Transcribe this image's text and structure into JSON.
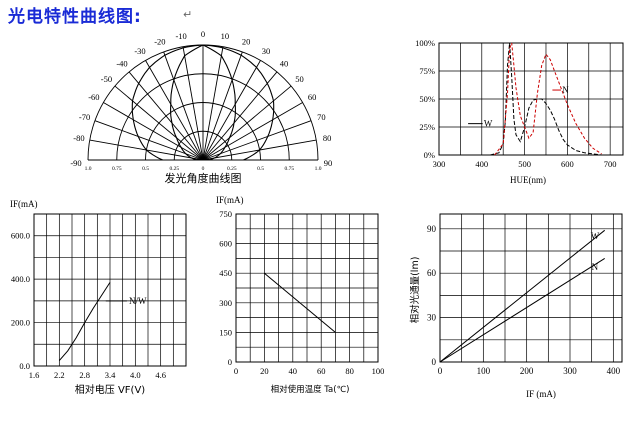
{
  "page": {
    "title": "光电特性曲线图:",
    "return_mark": "↵"
  },
  "chart_data": [
    {
      "type": "polar",
      "xlabel": "发光角度曲线图",
      "angle_labels": [
        "-90",
        "-80",
        "-70",
        "-60",
        "-50",
        "-40",
        "-30",
        "-20",
        "-10",
        "0",
        "10",
        "20",
        "30",
        "40",
        "50",
        "60",
        "70",
        "80",
        "90"
      ],
      "radial_tick_labels": [
        "1.0",
        "0.75",
        "0.5",
        "0.25",
        "0",
        "0.25",
        "0.5",
        "0.75",
        "1.0"
      ],
      "series": [
        {
          "pattern": "wide",
          "values": [
            0.35,
            0.5,
            0.6,
            0.7,
            0.8,
            0.87,
            0.93,
            0.97,
            0.99,
            1.0,
            0.99,
            0.97,
            0.93,
            0.87,
            0.8,
            0.7,
            0.6,
            0.5,
            0.35
          ]
        },
        {
          "pattern": "narrow",
          "values": [
            0.04,
            0.1,
            0.16,
            0.22,
            0.3,
            0.42,
            0.56,
            0.74,
            0.92,
            1.0,
            0.92,
            0.74,
            0.56,
            0.42,
            0.3,
            0.22,
            0.16,
            0.1,
            0.04
          ]
        }
      ]
    },
    {
      "type": "line",
      "xlabel": "HUE(nm)",
      "xticks": [
        "300",
        "400",
        "500",
        "600",
        "700"
      ],
      "yticks": [
        "0%",
        "25%",
        "50%",
        "75%",
        "100%"
      ],
      "xlim": [
        300,
        730
      ],
      "ylim": [
        0,
        100
      ],
      "series": [
        {
          "name": "W",
          "color": "#000000",
          "x": [
            420,
            440,
            450,
            455,
            460,
            465,
            470,
            475,
            480,
            490,
            500,
            510,
            520,
            530,
            540,
            550,
            560,
            570,
            580,
            590,
            600,
            620,
            640,
            660,
            680
          ],
          "y": [
            0,
            2,
            10,
            30,
            80,
            100,
            70,
            32,
            18,
            12,
            25,
            42,
            49,
            50,
            50,
            46,
            40,
            32,
            22,
            14,
            9,
            4,
            2,
            1,
            0
          ]
        },
        {
          "name": "N",
          "color": "#cc0000",
          "x": [
            430,
            450,
            460,
            465,
            470,
            475,
            480,
            490,
            500,
            510,
            520,
            530,
            540,
            550,
            560,
            570,
            580,
            590,
            600,
            620,
            640,
            660,
            680
          ],
          "y": [
            0,
            10,
            55,
            95,
            100,
            80,
            60,
            35,
            25,
            15,
            20,
            55,
            80,
            90,
            85,
            75,
            65,
            55,
            45,
            28,
            15,
            6,
            1
          ]
        }
      ]
    },
    {
      "type": "line",
      "title": "IF(mA)",
      "xlabel": "相对电压 VF(V)",
      "xticks": [
        "1.6",
        "2.2",
        "2.8",
        "3.4",
        "4.0",
        "4.6"
      ],
      "yticks": [
        "0.0",
        "200.0",
        "400.0",
        "600.0"
      ],
      "xlim": [
        1.6,
        5.2
      ],
      "ylim": [
        0,
        700
      ],
      "series": [
        {
          "name": "N/W",
          "x": [
            2.2,
            2.4,
            2.6,
            2.8,
            3.0,
            3.2,
            3.4
          ],
          "y": [
            25,
            70,
            130,
            200,
            265,
            325,
            385
          ]
        }
      ]
    },
    {
      "type": "line",
      "title": "IF(mA)",
      "xlabel": "相对使用温度 Ta(℃)",
      "xticks": [
        "0",
        "20",
        "40",
        "60",
        "80",
        "100"
      ],
      "yticks": [
        "0",
        "150",
        "300",
        "450",
        "600",
        "750"
      ],
      "xlim": [
        0,
        100
      ],
      "ylim": [
        0,
        750
      ],
      "series": [
        {
          "x": [
            20,
            70
          ],
          "y": [
            450,
            150
          ]
        }
      ]
    },
    {
      "type": "line",
      "xlabel": "IF (mA)",
      "ylabel": "相对光通量(lm)",
      "xticks": [
        "0",
        "100",
        "200",
        "300",
        "400"
      ],
      "yticks": [
        "0",
        "30",
        "60",
        "90"
      ],
      "xlim": [
        0,
        420
      ],
      "ylim": [
        0,
        100
      ],
      "series": [
        {
          "name": "W",
          "x": [
            0,
            380
          ],
          "y": [
            0,
            89
          ]
        },
        {
          "name": "N",
          "x": [
            0,
            380
          ],
          "y": [
            0,
            70
          ]
        }
      ]
    }
  ]
}
